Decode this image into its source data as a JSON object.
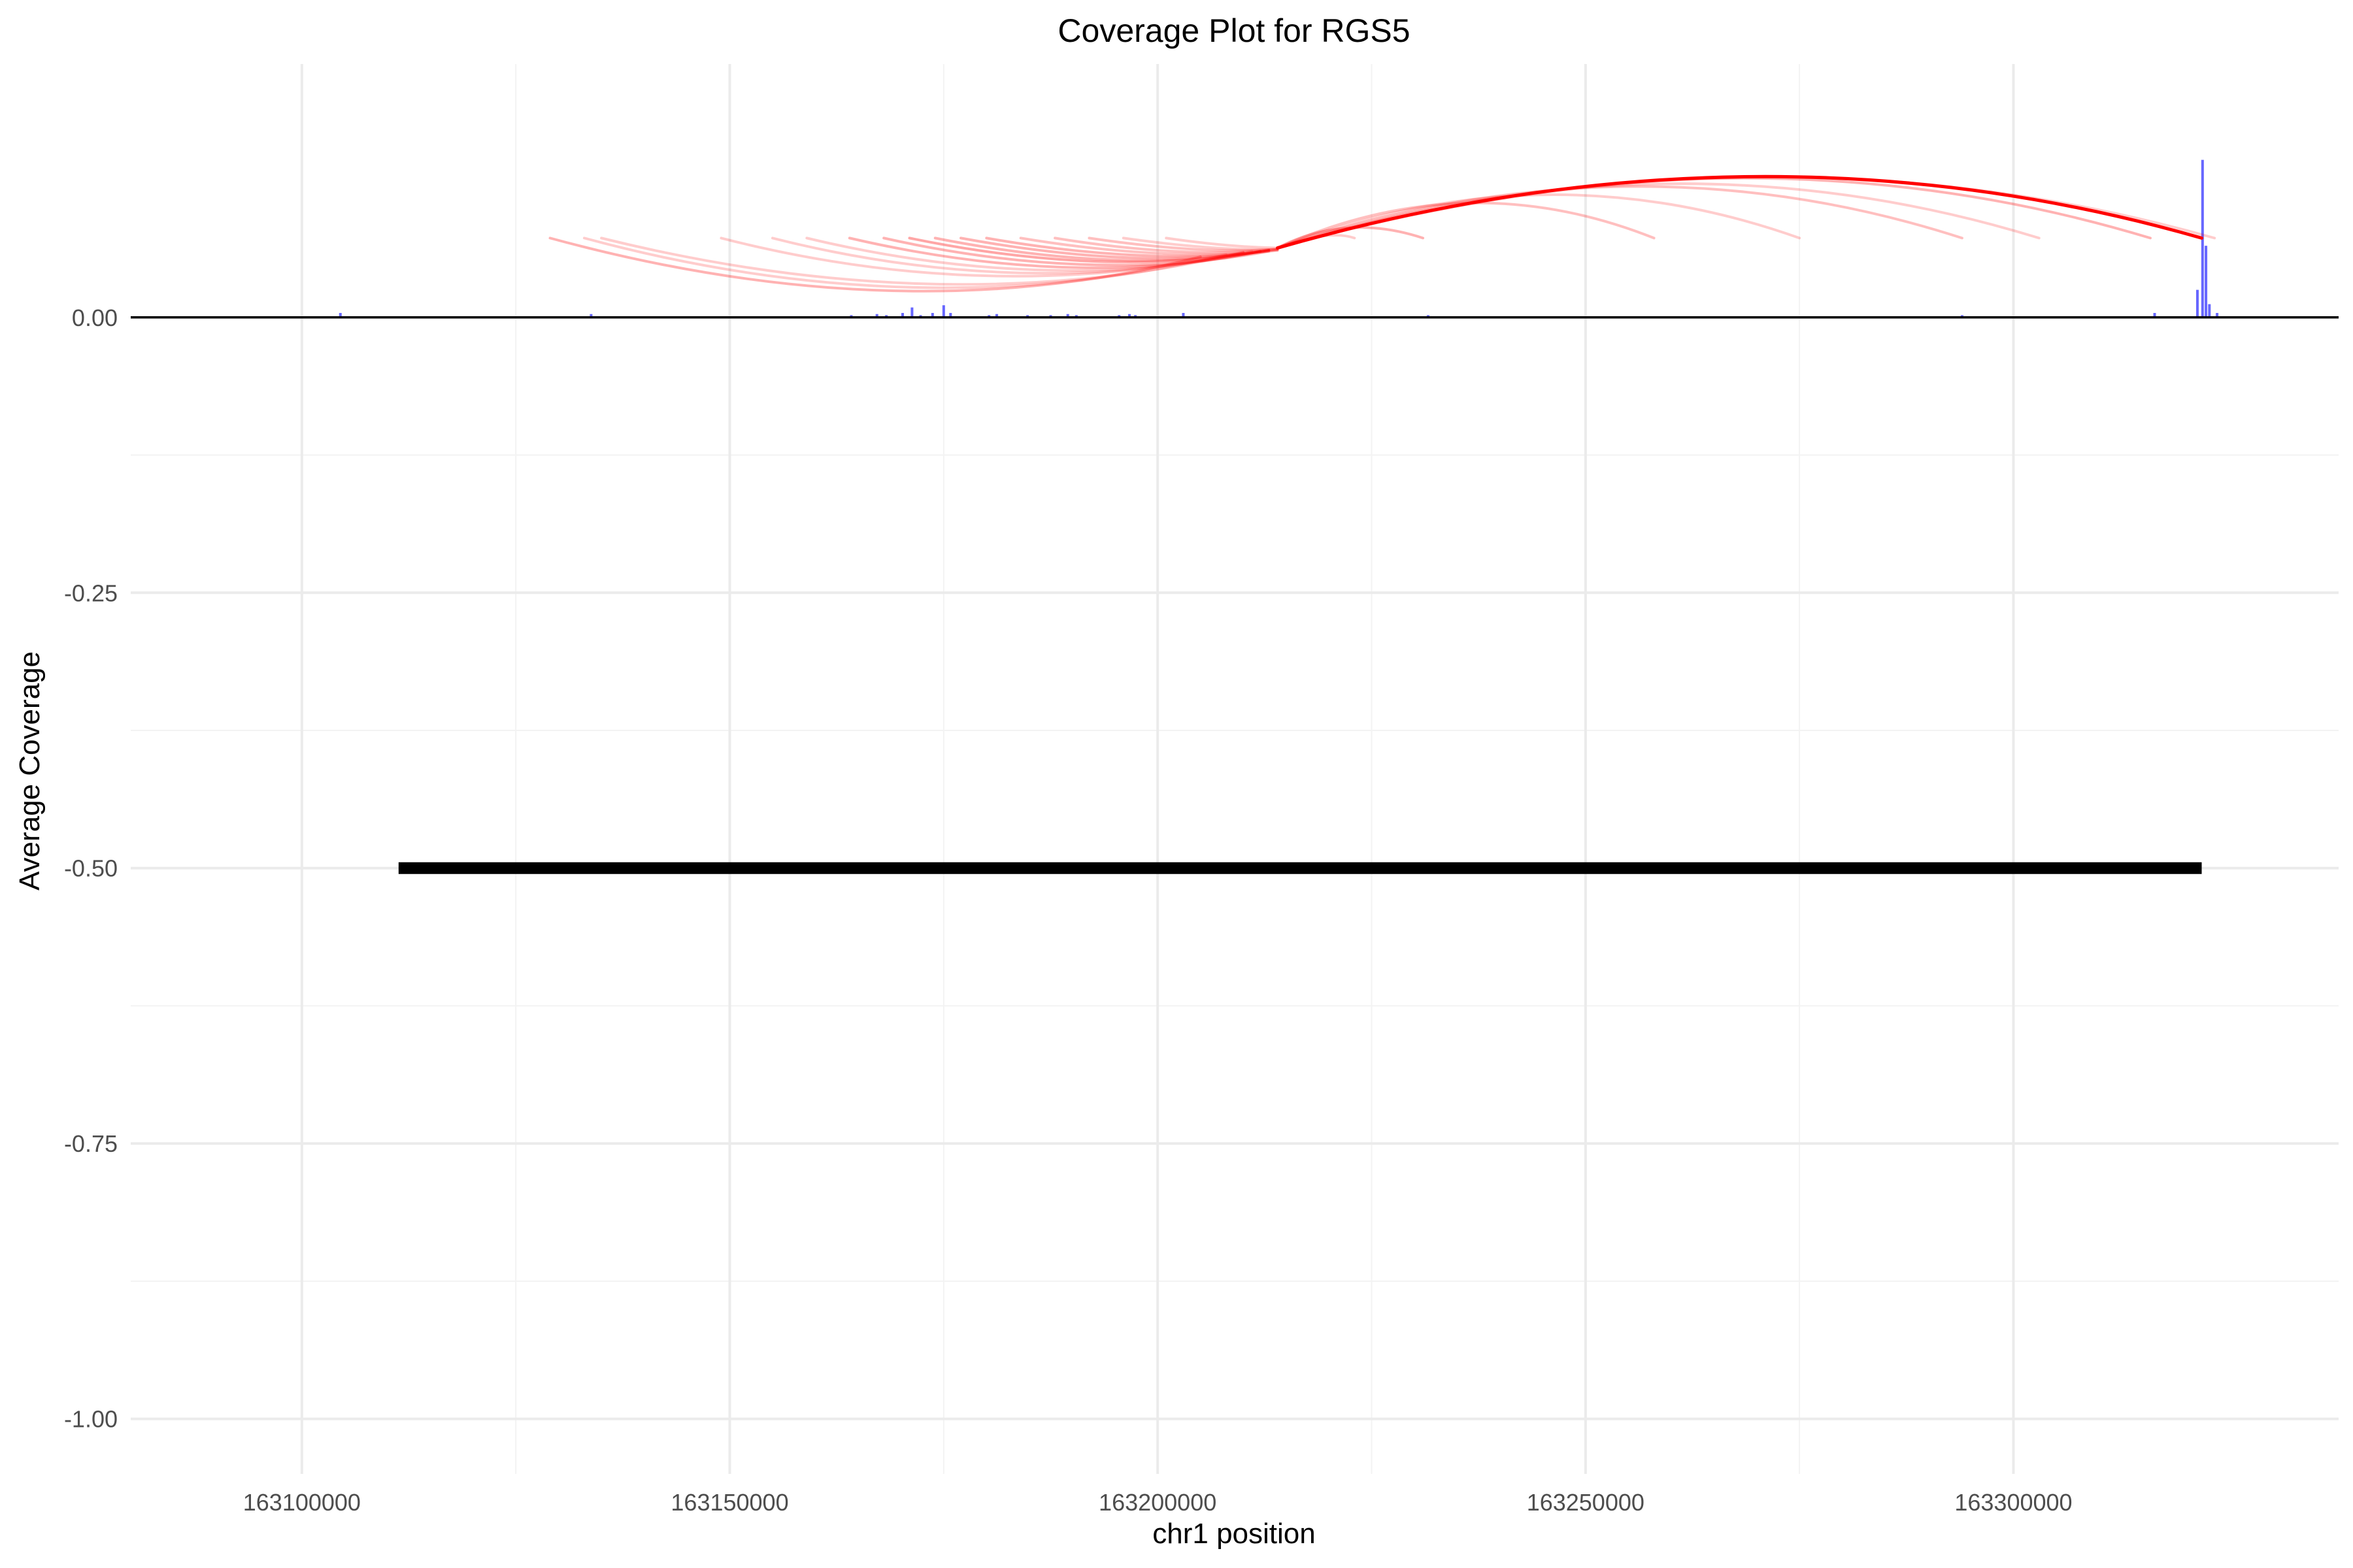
{
  "chart_data": {
    "type": "line",
    "title": "Coverage Plot for RGS5",
    "xlabel": "chr1 position",
    "ylabel": "Average Coverage",
    "xlim": [
      163080000,
      163338000
    ],
    "ylim": [
      -1.05,
      0.23
    ],
    "x_ticks": [
      163100000,
      163150000,
      163200000,
      163250000,
      163300000
    ],
    "x_tick_labels": [
      "163100000",
      "163150000",
      "163200000",
      "163250000",
      "163300000"
    ],
    "y_ticks": [
      0.0,
      -0.25,
      -0.5,
      -0.75,
      -1.0
    ],
    "y_tick_labels": [
      "0.00",
      "-0.25",
      "-0.50",
      "-0.75",
      "-1.00"
    ],
    "grid": true,
    "legend": "none",
    "colors": {
      "coverage": "#4c4cff",
      "junction": "#ff0000",
      "gene": "#000000",
      "grid": "#ebebeb",
      "baseline": "#000000"
    },
    "series": [
      {
        "kind": "coverage-bars",
        "points": [
          [
            163104500,
            0.004
          ],
          [
            163128800,
            0.001
          ],
          [
            163133800,
            0.003
          ],
          [
            163151500,
            0.001
          ],
          [
            163157000,
            0.001
          ],
          [
            163164200,
            0.002
          ],
          [
            163167200,
            0.003
          ],
          [
            163168300,
            0.002
          ],
          [
            163170200,
            0.004
          ],
          [
            163171300,
            0.009
          ],
          [
            163172300,
            0.002
          ],
          [
            163173700,
            0.004
          ],
          [
            163175000,
            0.011
          ],
          [
            163175800,
            0.004
          ],
          [
            163180300,
            0.002
          ],
          [
            163181200,
            0.003
          ],
          [
            163184800,
            0.002
          ],
          [
            163187500,
            0.002
          ],
          [
            163189500,
            0.003
          ],
          [
            163190500,
            0.002
          ],
          [
            163195500,
            0.002
          ],
          [
            163196700,
            0.003
          ],
          [
            163197400,
            0.002
          ],
          [
            163203000,
            0.004
          ],
          [
            163212600,
            0.001
          ],
          [
            163231600,
            0.002
          ],
          [
            163258500,
            0.001
          ],
          [
            163275000,
            0.001
          ],
          [
            163290000,
            0.001
          ],
          [
            163294000,
            0.002
          ],
          [
            163304500,
            0.001
          ],
          [
            163316500,
            0.004
          ],
          [
            163321500,
            0.025
          ],
          [
            163322100,
            0.143
          ],
          [
            163322500,
            0.065
          ],
          [
            163322900,
            0.012
          ],
          [
            163323800,
            0.004
          ]
        ]
      },
      {
        "kind": "junction-arcs",
        "arcs": [
          {
            "from": [
              163129000,
              0.072
            ],
            "via": [
              163170000,
              -0.015
            ],
            "to": [
              163205000,
              0.055
            ],
            "opacity": 0.3
          },
          {
            "from": [
              163133000,
              0.072
            ],
            "via": [
              163172000,
              -0.01
            ],
            "to": [
              163208000,
              0.057
            ],
            "opacity": 0.2
          },
          {
            "from": [
              163135000,
              0.072
            ],
            "via": [
              163175000,
              -0.005
            ],
            "to": [
              163210000,
              0.059
            ],
            "opacity": 0.2
          },
          {
            "from": [
              163149000,
              0.072
            ],
            "via": [
              163180000,
              0.01
            ],
            "to": [
              163210000,
              0.059
            ],
            "opacity": 0.2
          },
          {
            "from": [
              163155000,
              0.072
            ],
            "via": [
              163184000,
              0.015
            ],
            "to": [
              163211000,
              0.06
            ],
            "opacity": 0.2
          },
          {
            "from": [
              163159000,
              0.072
            ],
            "via": [
              163187000,
              0.02
            ],
            "to": [
              163212000,
              0.06
            ],
            "opacity": 0.2
          },
          {
            "from": [
              163164000,
              0.072
            ],
            "via": [
              163190000,
              0.025
            ],
            "to": [
              163212000,
              0.06
            ],
            "opacity": 0.3
          },
          {
            "from": [
              163168000,
              0.072
            ],
            "via": [
              163192000,
              0.03
            ],
            "to": [
              163213000,
              0.06
            ],
            "opacity": 0.3
          },
          {
            "from": [
              163171000,
              0.072
            ],
            "via": [
              163194000,
              0.035
            ],
            "to": [
              163213000,
              0.061
            ],
            "opacity": 0.35
          },
          {
            "from": [
              163174000,
              0.072
            ],
            "via": [
              163196000,
              0.038
            ],
            "to": [
              163213000,
              0.061
            ],
            "opacity": 0.3
          },
          {
            "from": [
              163177000,
              0.072
            ],
            "via": [
              163198000,
              0.042
            ],
            "to": [
              163213000,
              0.061
            ],
            "opacity": 0.3
          },
          {
            "from": [
              163180000,
              0.072
            ],
            "via": [
              163199000,
              0.046
            ],
            "to": [
              163214000,
              0.061
            ],
            "opacity": 0.3
          },
          {
            "from": [
              163184000,
              0.072
            ],
            "via": [
              163201000,
              0.05
            ],
            "to": [
              163214000,
              0.061
            ],
            "opacity": 0.25
          },
          {
            "from": [
              163188000,
              0.072
            ],
            "via": [
              163203000,
              0.053
            ],
            "to": [
              163214000,
              0.062
            ],
            "opacity": 0.25
          },
          {
            "from": [
              163192000,
              0.072
            ],
            "via": [
              163205000,
              0.057
            ],
            "to": [
              163214000,
              0.062
            ],
            "opacity": 0.25
          },
          {
            "from": [
              163196000,
              0.072
            ],
            "via": [
              163207000,
              0.06
            ],
            "to": [
              163214000,
              0.062
            ],
            "opacity": 0.2
          },
          {
            "from": [
              163201000,
              0.072
            ],
            "via": [
              163208000,
              0.064
            ],
            "to": [
              163214000,
              0.063
            ],
            "opacity": 0.2
          },
          {
            "from": [
              163214000,
              0.063
            ],
            "via": [
              163222000,
              0.095
            ],
            "to": [
              163231000,
              0.072
            ],
            "opacity": 0.3
          },
          {
            "from": [
              163214000,
              0.063
            ],
            "via": [
              163220000,
              0.08
            ],
            "to": [
              163223000,
              0.072
            ],
            "opacity": 0.2
          },
          {
            "from": [
              163214000,
              0.063
            ],
            "via": [
              163236000,
              0.14
            ],
            "to": [
              163258000,
              0.072
            ],
            "opacity": 0.25
          },
          {
            "from": [
              163214000,
              0.063
            ],
            "via": [
              163245000,
              0.155
            ],
            "to": [
              163275000,
              0.072
            ],
            "opacity": 0.2
          },
          {
            "from": [
              163214000,
              0.063
            ],
            "via": [
              163255000,
              0.17
            ],
            "to": [
              163294000,
              0.072
            ],
            "opacity": 0.25
          },
          {
            "from": [
              163214000,
              0.063
            ],
            "via": [
              163260000,
              0.175
            ],
            "to": [
              163303000,
              0.072
            ],
            "opacity": 0.2
          },
          {
            "from": [
              163214000,
              0.063
            ],
            "via": [
              163268000,
              0.185
            ],
            "to": [
              163316000,
              0.072
            ],
            "opacity": 0.3
          },
          {
            "from": [
              163214000,
              0.063
            ],
            "via": [
              163270000,
              0.188
            ],
            "to": [
              163322000,
              0.072
            ],
            "opacity": 1.0
          },
          {
            "from": [
              163214000,
              0.063
            ],
            "via": [
              163271000,
              0.187
            ],
            "to": [
              163323500,
              0.072
            ],
            "opacity": 0.2
          }
        ]
      },
      {
        "kind": "gene-model",
        "segments": [
          {
            "start": 163111300,
            "end": 163322000,
            "y": -0.5
          }
        ]
      }
    ]
  }
}
